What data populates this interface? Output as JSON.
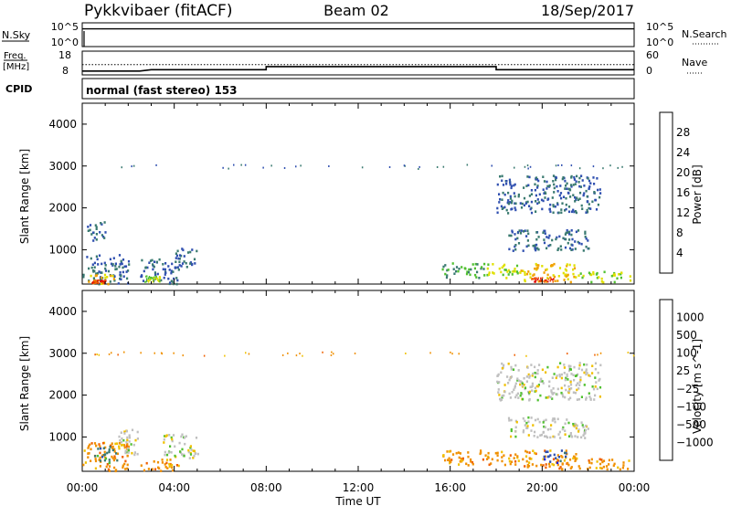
{
  "header": {
    "radar": "Pykkvibaer (fitACF)",
    "beam": "Beam 02",
    "date": "18/Sep/2017"
  },
  "panels": {
    "nsky": {
      "left_label": "N.Sky",
      "left_ticks": [
        "10^5",
        "10^0"
      ],
      "right_ticks": [
        "10^5",
        "10^0"
      ],
      "right_label": "N.Search"
    },
    "freq": {
      "left_label_1": "Freq.",
      "left_label_2": "[MHz]",
      "left_ticks": [
        "18",
        "8"
      ],
      "right_ticks": [
        "60",
        "0"
      ],
      "right_label": "Nave"
    },
    "cpid": {
      "label": "CPID",
      "text": "normal (fast stereo) 153"
    }
  },
  "colors": {
    "power": [
      "#2020e0",
      "#3050b0",
      "#3a7a70",
      "#50c030",
      "#e0e000",
      "#f0a000",
      "#f06000",
      "#e00000"
    ],
    "velocity": [
      "#e00000",
      "#f06000",
      "#f09000",
      "#f0c000",
      "#c0c0c0",
      "#50c030",
      "#3a7a70",
      "#3050b0",
      "#2020e0"
    ]
  },
  "chart_data": [
    {
      "type": "line",
      "title": "N.Sky / N.Search",
      "series": [
        {
          "name": "N.Sky",
          "x": [
            "00:00",
            "24:00"
          ],
          "y_log10": [
            4.5,
            4.5
          ]
        },
        {
          "name": "N.Search",
          "x": [
            "00:00",
            "24:00"
          ],
          "y_log10": [
            4.5,
            4.5
          ]
        }
      ]
    },
    {
      "type": "line",
      "title": "Freq. / Nave",
      "series": [
        {
          "name": "Freq. [MHz]",
          "x": [
            "00:00",
            "02:30",
            "03:00",
            "08:00",
            "08:00",
            "18:00",
            "18:00",
            "24:00"
          ],
          "y": [
            9.6,
            9.6,
            10.2,
            10.2,
            11.5,
            11.5,
            10.2,
            10.2
          ]
        },
        {
          "name": "Nave",
          "x": [
            "00:00",
            "24:00"
          ],
          "y": [
            26,
            26
          ]
        }
      ]
    },
    {
      "type": "heatmap",
      "ylabel": "Slant Range [km]",
      "yticks": [
        "1000",
        "2000",
        "3000",
        "4000"
      ],
      "ylim": [
        180,
        4500
      ],
      "xticks": [
        "00:00",
        "04:00",
        "08:00",
        "12:00",
        "16:00",
        "20:00",
        "00:00"
      ],
      "xlim": [
        0,
        24
      ],
      "colorbar_label": "Power [dB]",
      "colorbar_ticks": [
        "4",
        "8",
        "12",
        "16",
        "20",
        "24",
        "28"
      ],
      "regions": [
        {
          "t": [
            0.0,
            2.0
          ],
          "r": [
            200,
            900
          ],
          "value": 8
        },
        {
          "t": [
            0.2,
            1.4
          ],
          "r": [
            200,
            450
          ],
          "value": 20
        },
        {
          "t": [
            0.4,
            1.0
          ],
          "r": [
            220,
            300
          ],
          "value": 28
        },
        {
          "t": [
            0.2,
            1.0
          ],
          "r": [
            1200,
            1700
          ],
          "value": 8
        },
        {
          "t": [
            2.5,
            4.2
          ],
          "r": [
            200,
            800
          ],
          "value": 8
        },
        {
          "t": [
            2.7,
            3.4
          ],
          "r": [
            250,
            400
          ],
          "value": 16
        },
        {
          "t": [
            4.0,
            5.0
          ],
          "r": [
            600,
            1100
          ],
          "value": 8
        },
        {
          "t": [
            15.6,
            17.5
          ],
          "r": [
            350,
            700
          ],
          "value": 12
        },
        {
          "t": [
            17.5,
            19.0
          ],
          "r": [
            350,
            700
          ],
          "value": 16
        },
        {
          "t": [
            19.0,
            21.5
          ],
          "r": [
            250,
            700
          ],
          "value": 20
        },
        {
          "t": [
            19.5,
            20.5
          ],
          "r": [
            250,
            350
          ],
          "value": 28
        },
        {
          "t": [
            21.5,
            23.8
          ],
          "r": [
            250,
            500
          ],
          "value": 16
        },
        {
          "t": [
            18.0,
            22.5
          ],
          "r": [
            1900,
            2800
          ],
          "value": 8
        },
        {
          "t": [
            18.5,
            22.0
          ],
          "r": [
            1000,
            1500
          ],
          "value": 8
        },
        {
          "t": [
            0.0,
            24.0
          ],
          "r": [
            2950,
            3050
          ],
          "value": 8
        }
      ]
    },
    {
      "type": "heatmap",
      "ylabel": "Slant Range [km]",
      "yticks": [
        "1000",
        "2000",
        "3000",
        "4000"
      ],
      "ylim": [
        180,
        4500
      ],
      "xticks": [
        "00:00",
        "04:00",
        "08:00",
        "12:00",
        "16:00",
        "20:00",
        "00:00"
      ],
      "xlim": [
        0,
        24
      ],
      "xlabel": "Time UT",
      "colorbar_label": "Velocity [m s^-1]",
      "colorbar_ticks": [
        "1000",
        "500",
        "100",
        "25",
        "−25",
        "−100",
        "−500",
        "−1000"
      ],
      "regions": [
        {
          "t": [
            0.0,
            2.0
          ],
          "r": [
            200,
            900
          ],
          "value": -100
        },
        {
          "t": [
            0.5,
            1.5
          ],
          "r": [
            400,
            800
          ],
          "value": 100
        },
        {
          "t": [
            1.5,
            2.5
          ],
          "r": [
            600,
            1200
          ],
          "value": 0
        },
        {
          "t": [
            2.5,
            4.2
          ],
          "r": [
            200,
            500
          ],
          "value": -100
        },
        {
          "t": [
            3.5,
            5.0
          ],
          "r": [
            500,
            1100
          ],
          "value": 0
        },
        {
          "t": [
            15.6,
            17.5
          ],
          "r": [
            350,
            700
          ],
          "value": -100
        },
        {
          "t": [
            17.5,
            19.0
          ],
          "r": [
            350,
            700
          ],
          "value": -100
        },
        {
          "t": [
            19.0,
            21.5
          ],
          "r": [
            250,
            700
          ],
          "value": -100
        },
        {
          "t": [
            20.0,
            21.0
          ],
          "r": [
            400,
            700
          ],
          "value": 500
        },
        {
          "t": [
            21.5,
            23.8
          ],
          "r": [
            250,
            500
          ],
          "value": -100
        },
        {
          "t": [
            18.0,
            22.5
          ],
          "r": [
            1900,
            2800
          ],
          "value": 0
        },
        {
          "t": [
            18.5,
            22.0
          ],
          "r": [
            1000,
            1500
          ],
          "value": 0
        },
        {
          "t": [
            0.0,
            24.0
          ],
          "r": [
            2950,
            3050
          ],
          "value": -100
        }
      ]
    }
  ]
}
